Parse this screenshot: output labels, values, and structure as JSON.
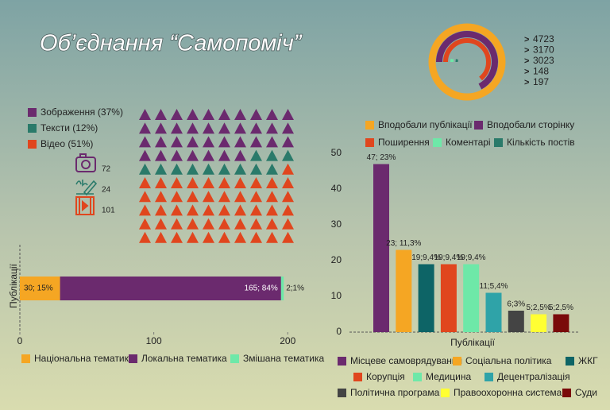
{
  "title": "Об’єднання “Самопоміч”",
  "chart_data": [
    {
      "type": "radial",
      "categories": [
        "Вподобали публікації",
        "Вподобали сторінку",
        "Поширення",
        "Коментарі",
        "Кількість постів"
      ],
      "colors": [
        "#f5a623",
        "#6b2a6e",
        "#e0461e",
        "#6ee8a8",
        "#2a7a6a"
      ],
      "values": [
        4723,
        3170,
        3023,
        148,
        197
      ]
    },
    {
      "type": "waffle",
      "series": [
        {
          "name": "Зображення (37%)",
          "color": "#6b2a6e",
          "value": 37,
          "count": 72
        },
        {
          "name": "Тексти (12%)",
          "color": "#2a7a6a",
          "value": 12,
          "count": 24
        },
        {
          "name": "Відео (51%)",
          "color": "#e0461e",
          "value": 51,
          "count": 101
        }
      ]
    },
    {
      "type": "hbar-stacked",
      "ylabel": "Публікації",
      "series": [
        {
          "name": "Національна тематика",
          "color": "#f5a623",
          "values": [
            30
          ],
          "value_labels": [
            "30; 15%"
          ]
        },
        {
          "name": "Локальна тематика",
          "color": "#6b2a6e",
          "values": [
            165
          ],
          "value_labels": [
            "165; 84%"
          ]
        },
        {
          "name": "Змішана тематика",
          "color": "#6ee8a8",
          "values": [
            2
          ],
          "value_labels": [
            "2;1%"
          ]
        }
      ],
      "xlim": [
        0,
        220
      ],
      "xticks": [
        0,
        100,
        200
      ]
    },
    {
      "type": "bar",
      "xlabel": "Публікації",
      "categories": [
        "Місцеве самоврядування",
        "Соціальна політика",
        "ЖКГ",
        "Корупція",
        "Медицина",
        "Децентралізація",
        "Політична програма",
        "Правоохоронна система",
        "Суди"
      ],
      "colors": [
        "#6b2a6e",
        "#f5a623",
        "#0d6466",
        "#e0461e",
        "#6ee8a8",
        "#2fa3a8",
        "#444444",
        "#ffff33",
        "#7a0a0a"
      ],
      "values": [
        47,
        23,
        19,
        19,
        19,
        11,
        6,
        5,
        5
      ],
      "value_labels": [
        "47; 23%",
        "23; 11,3%",
        "19;9,4%",
        "19;9,4%",
        "19;9,4%",
        "11;5,4%",
        "6;3%",
        "5;2,5%",
        "5;2,5%"
      ],
      "ylim": [
        0,
        50
      ],
      "yticks": [
        0,
        10,
        20,
        30,
        40,
        50
      ]
    }
  ]
}
